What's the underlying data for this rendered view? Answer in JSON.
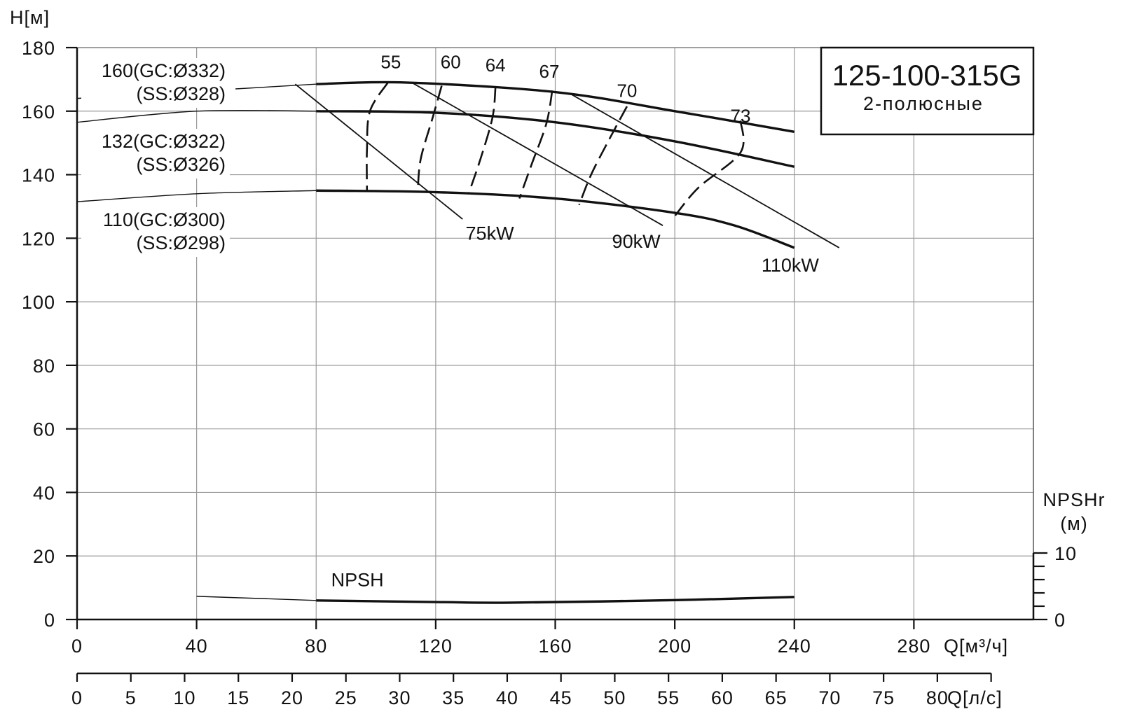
{
  "chart_data": {
    "type": "line",
    "title": "125-100-315G",
    "subtitle": "2-полюсные",
    "ylabel": "H[м]",
    "xlabel": "Q[м³/ч]",
    "x2label": "Q[л/с]",
    "y2label_line1": "NPSHr",
    "y2label_line2": "(м)",
    "xlim": [
      0,
      320
    ],
    "ylim": [
      0,
      180
    ],
    "x_ticks": [
      0,
      40,
      80,
      120,
      160,
      200,
      240,
      280
    ],
    "y_ticks": [
      0,
      20,
      40,
      60,
      80,
      100,
      120,
      140,
      160,
      180
    ],
    "x2_ticks": [
      0,
      5,
      10,
      15,
      20,
      25,
      30,
      35,
      40,
      45,
      50,
      55,
      60,
      65,
      70,
      75,
      80
    ],
    "y2_ticks": [
      0,
      10
    ],
    "grid": true,
    "head_curves": [
      {
        "name_line1": "160(GC:Ø332)",
        "name_line2": "(SS:Ø328)",
        "ext_points": [
          [
            0,
            156.5
          ],
          [
            40,
            160
          ],
          [
            80,
            160
          ]
        ],
        "points": [
          [
            80,
            160
          ],
          [
            120,
            159.5
          ],
          [
            160,
            156.5
          ],
          [
            200,
            150.5
          ],
          [
            240,
            142.5
          ]
        ]
      },
      {
        "name_line1": "132(GC:Ø322)",
        "name_line2": "(SS:Ø326)",
        "ext_points": [
          [
            0,
            131.5
          ],
          [
            40,
            134
          ],
          [
            80,
            135
          ]
        ],
        "points": [
          [
            80,
            135
          ],
          [
            120,
            134.5
          ],
          [
            160,
            132.5
          ],
          [
            200,
            128
          ],
          [
            220,
            124
          ],
          [
            240,
            117
          ]
        ]
      },
      {
        "name_line1": "110(GC:Ø300)",
        "name_line2": "(SS:Ø298)",
        "ext_points": [
          [
            0,
            164
          ],
          [
            5,
            164.3
          ]
        ],
        "ext_points_b": [
          [
            53,
            167
          ],
          [
            80,
            168.5
          ]
        ],
        "points": [
          [
            80,
            168.5
          ],
          [
            110,
            169
          ],
          [
            160,
            166
          ],
          [
            200,
            160
          ],
          [
            240,
            153.5
          ]
        ]
      }
    ],
    "efficiency_lines": [
      {
        "label": "55",
        "label_at": [
          105,
          173.5
        ],
        "points": [
          [
            104,
            169
          ],
          [
            98,
            160
          ],
          [
            97,
            148
          ],
          [
            97,
            135
          ]
        ]
      },
      {
        "label": "60",
        "label_at": [
          125,
          173.5
        ],
        "points": [
          [
            122,
            168
          ],
          [
            119,
            158
          ],
          [
            115,
            145
          ],
          [
            114,
            135
          ]
        ]
      },
      {
        "label": "64",
        "label_at": [
          140,
          172.5
        ],
        "points": [
          [
            140,
            167.5
          ],
          [
            139,
            158
          ],
          [
            135,
            145
          ],
          [
            131,
            134
          ]
        ]
      },
      {
        "label": "67",
        "label_at": [
          158,
          170.5
        ],
        "points": [
          [
            159,
            166.5
          ],
          [
            157,
            156
          ],
          [
            152,
            143
          ],
          [
            148,
            132.5
          ]
        ]
      },
      {
        "label": "70",
        "label_at": [
          184,
          164.5
        ],
        "points": [
          [
            184,
            161.5
          ],
          [
            178,
            151
          ],
          [
            172,
            140
          ],
          [
            168,
            130.5
          ]
        ]
      },
      {
        "label": "73",
        "label_at": [
          222,
          156.5
        ],
        "points": [
          [
            222,
            157
          ],
          [
            222,
            147
          ],
          [
            208,
            136
          ],
          [
            200,
            127
          ]
        ]
      }
    ],
    "power_lines": [
      {
        "label": "75kW",
        "label_at": [
          130,
          119.5
        ],
        "points": [
          [
            73,
            168.5
          ],
          [
            129,
            126
          ]
        ]
      },
      {
        "label": "90kW",
        "label_at": [
          179,
          117
        ],
        "points": [
          [
            112,
            169
          ],
          [
            196,
            124
          ]
        ]
      },
      {
        "label": "110kW",
        "label_at": [
          229,
          109.5
        ],
        "points": [
          [
            165,
            165.5
          ],
          [
            255,
            117
          ]
        ]
      }
    ],
    "npsh": {
      "name": "NPSH",
      "label_at": [
        85,
        10.5
      ],
      "ext_points": [
        [
          40,
          7.3
        ],
        [
          80,
          6
        ]
      ],
      "points": [
        [
          80,
          6
        ],
        [
          120,
          5.5
        ],
        [
          145,
          5.3
        ],
        [
          200,
          6.1
        ],
        [
          240,
          7.1
        ]
      ]
    }
  }
}
